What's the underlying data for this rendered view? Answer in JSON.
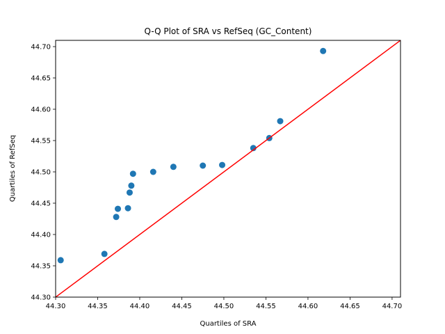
{
  "chart_data": {
    "type": "scatter",
    "title": "Q-Q Plot of SRA vs RefSeq (GC_Content)",
    "xlabel": "Quartiles of SRA",
    "ylabel": "Quartiles of RefSeq",
    "xlim": [
      44.3,
      44.71
    ],
    "ylim": [
      44.3,
      44.71
    ],
    "xticks": [
      "44.30",
      "44.35",
      "44.40",
      "44.45",
      "44.50",
      "44.55",
      "44.60",
      "44.65",
      "44.70"
    ],
    "yticks": [
      "44.30",
      "44.35",
      "44.40",
      "44.45",
      "44.50",
      "44.55",
      "44.60",
      "44.65",
      "44.70"
    ],
    "grid": false,
    "series": [
      {
        "marker_color": "#1f77b4",
        "points": [
          {
            "x": 44.306,
            "y": 44.359
          },
          {
            "x": 44.358,
            "y": 44.369
          },
          {
            "x": 44.372,
            "y": 44.428
          },
          {
            "x": 44.374,
            "y": 44.441
          },
          {
            "x": 44.386,
            "y": 44.442
          },
          {
            "x": 44.388,
            "y": 44.467
          },
          {
            "x": 44.39,
            "y": 44.478
          },
          {
            "x": 44.392,
            "y": 44.497
          },
          {
            "x": 44.416,
            "y": 44.5
          },
          {
            "x": 44.44,
            "y": 44.508
          },
          {
            "x": 44.475,
            "y": 44.51
          },
          {
            "x": 44.498,
            "y": 44.511
          },
          {
            "x": 44.535,
            "y": 44.538
          },
          {
            "x": 44.554,
            "y": 44.554
          },
          {
            "x": 44.567,
            "y": 44.581
          },
          {
            "x": 44.618,
            "y": 44.693
          }
        ]
      }
    ],
    "reference_line": {
      "color": "#ff0000",
      "from": [
        44.3,
        44.3
      ],
      "to": [
        44.71,
        44.71
      ]
    }
  }
}
